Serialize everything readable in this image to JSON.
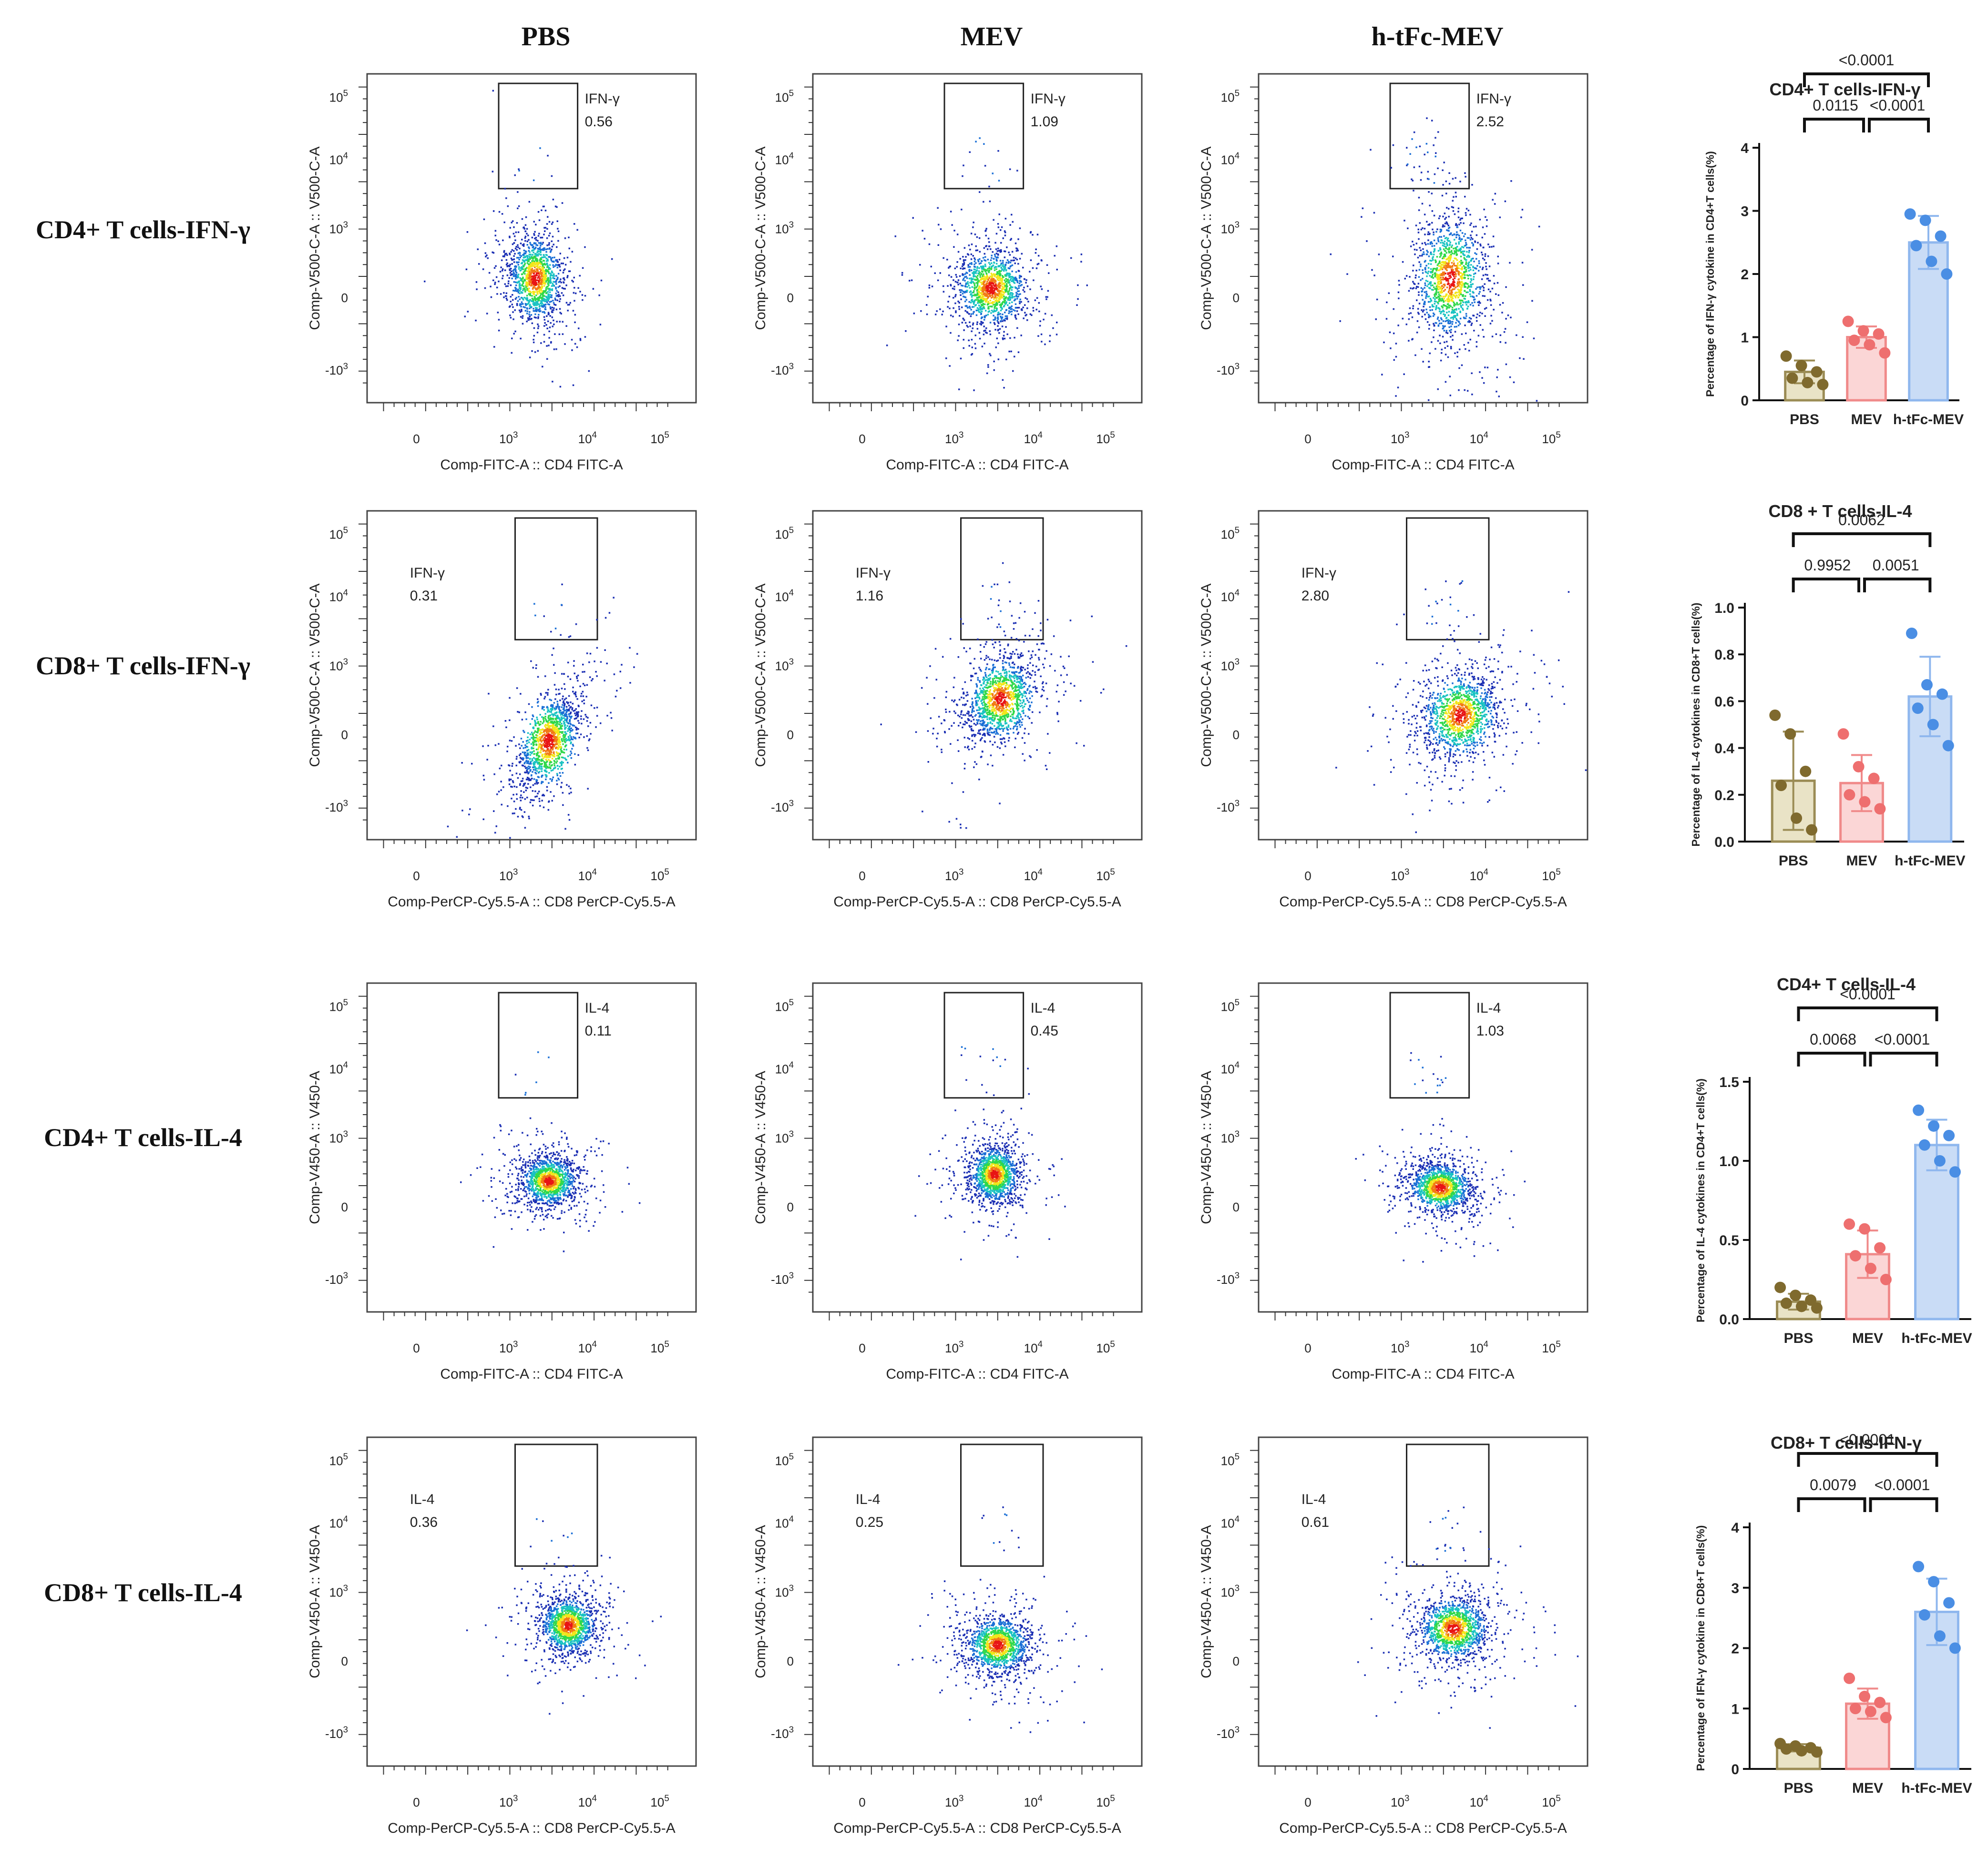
{
  "columns": [
    "PBS",
    "MEV",
    "h-tFc-MEV"
  ],
  "rows": [
    {
      "label": "CD4+ T cells-IFN-γ",
      "y_axis": "Comp-V500-C-A :: V500-C-A",
      "x_axis": "Comp-FITC-A :: CD4 FITC-A",
      "gate_label": "IFN-γ",
      "gate_position": "top-right",
      "gate_values": [
        "0.56",
        "1.09",
        "2.52"
      ]
    },
    {
      "label": "CD8+ T cells-IFN-γ",
      "y_axis": "Comp-V500-C-A :: V500-C-A",
      "x_axis": "Comp-PerCP-Cy5.5-A :: CD8 PerCP-Cy5.5-A",
      "gate_label": "IFN-γ",
      "gate_position": "top-left",
      "gate_values": [
        "0.31",
        "1.16",
        "2.80"
      ]
    },
    {
      "label": "CD4+ T cells-IL-4",
      "y_axis": "Comp-V450-A :: V450-A",
      "x_axis": "Comp-FITC-A :: CD4 FITC-A",
      "gate_label": "IL-4",
      "gate_position": "top-right",
      "gate_values": [
        "0.11",
        "0.45",
        "1.03"
      ]
    },
    {
      "label": "CD8+ T cells-IL-4",
      "y_axis": "Comp-V450-A :: V450-A",
      "x_axis": "Comp-PerCP-Cy5.5-A :: CD8 PerCP-Cy5.5-A",
      "gate_label": "IL-4",
      "gate_position": "top-left",
      "gate_values": [
        "0.36",
        "0.25",
        "0.61"
      ]
    }
  ],
  "flow_axis_ticks": {
    "x": [
      "0",
      "10^3",
      "10^4",
      "10^5"
    ],
    "y": [
      "10^5",
      "10^4",
      "10^3",
      "0",
      "-10^3"
    ]
  },
  "colors": {
    "PBS_fill": "#e9e3c6",
    "PBS_edge": "#9b8c55",
    "PBS_dot": "#7f6a2e",
    "MEV_fill": "#fbd6d6",
    "MEV_edge": "#f08a8a",
    "MEV_dot": "#ee6f6f",
    "hMEV_fill": "#c9dcf6",
    "hMEV_edge": "#8fb7ee",
    "hMEV_dot": "#4a8ee4",
    "density": [
      "#1b2fb3",
      "#1a6fd6",
      "#19c2c2",
      "#2fd84a",
      "#f2e61a",
      "#f27a14",
      "#e81414"
    ]
  },
  "chart_data": [
    {
      "type": "bar",
      "title": "CD4+ T cells-IFN-γ",
      "ylabel": "Percentage of IFN-γ cytokine in CD4+T cells(%)",
      "categories": [
        "PBS",
        "MEV",
        "h-tFc-MEV"
      ],
      "values": [
        0.45,
        1.0,
        2.5
      ],
      "errors": [
        0.18,
        0.17,
        0.42
      ],
      "points": [
        [
          0.7,
          0.55,
          0.45,
          0.35,
          0.28,
          0.25
        ],
        [
          1.25,
          1.1,
          1.05,
          0.95,
          0.88,
          0.75
        ],
        [
          2.95,
          2.85,
          2.6,
          2.45,
          2.2,
          2.0
        ]
      ],
      "ylim": [
        0,
        4
      ],
      "yticks": [
        "0",
        "1",
        "2",
        "3",
        "4"
      ],
      "significance": [
        {
          "from": 0,
          "to": 1,
          "label": "0.0115",
          "level": 0
        },
        {
          "from": 1,
          "to": 2,
          "label": "<0.0001",
          "level": 0
        },
        {
          "from": 0,
          "to": 2,
          "label": "<0.0001",
          "level": 1
        }
      ]
    },
    {
      "type": "bar",
      "title": "CD8 + T cells-IL-4",
      "ylabel": "Percentage of IL-4 cytokines in CD8+T cells(%)",
      "categories": [
        "PBS",
        "MEV",
        "h-tFc-MEV"
      ],
      "values": [
        0.26,
        0.25,
        0.62
      ],
      "errors": [
        0.21,
        0.12,
        0.17
      ],
      "points": [
        [
          0.54,
          0.46,
          0.3,
          0.24,
          0.1,
          0.05
        ],
        [
          0.46,
          0.32,
          0.27,
          0.2,
          0.17,
          0.14
        ],
        [
          0.89,
          0.67,
          0.63,
          0.57,
          0.5,
          0.41
        ]
      ],
      "ylim": [
        0,
        1.0
      ],
      "yticks": [
        "0.0",
        "0.2",
        "0.4",
        "0.6",
        "0.8",
        "1.0"
      ],
      "significance": [
        {
          "from": 0,
          "to": 1,
          "label": "0.9952",
          "level": 0
        },
        {
          "from": 1,
          "to": 2,
          "label": "0.0051",
          "level": 0
        },
        {
          "from": 0,
          "to": 2,
          "label": "0.0062",
          "level": 1
        }
      ]
    },
    {
      "type": "bar",
      "title": "CD4+ T cells-IL-4",
      "ylabel": "Percentage of IL-4 cytokines in CD4+T cells(%)",
      "categories": [
        "PBS",
        "MEV",
        "h-tFc-MEV"
      ],
      "values": [
        0.11,
        0.41,
        1.1
      ],
      "errors": [
        0.05,
        0.15,
        0.16
      ],
      "points": [
        [
          0.2,
          0.15,
          0.12,
          0.1,
          0.08,
          0.07
        ],
        [
          0.6,
          0.57,
          0.45,
          0.4,
          0.32,
          0.25
        ],
        [
          1.32,
          1.22,
          1.16,
          1.1,
          1.0,
          0.93
        ]
      ],
      "ylim": [
        0,
        1.5
      ],
      "yticks": [
        "0.0",
        "0.5",
        "1.0",
        "1.5"
      ],
      "significance": [
        {
          "from": 0,
          "to": 1,
          "label": "0.0068",
          "level": 0
        },
        {
          "from": 1,
          "to": 2,
          "label": "<0.0001",
          "level": 0
        },
        {
          "from": 0,
          "to": 2,
          "label": "<0.0001",
          "level": 1
        }
      ]
    },
    {
      "type": "bar",
      "title": "CD8+ T cells-IFN-γ",
      "ylabel": "Percentage of IFN-γ cytokine in CD8+T cells(%)",
      "categories": [
        "PBS",
        "MEV",
        "h-tFc-MEV"
      ],
      "values": [
        0.35,
        1.08,
        2.6
      ],
      "errors": [
        0.06,
        0.25,
        0.55
      ],
      "points": [
        [
          0.42,
          0.38,
          0.35,
          0.33,
          0.3,
          0.28
        ],
        [
          1.5,
          1.2,
          1.1,
          1.0,
          0.95,
          0.85
        ],
        [
          3.35,
          3.1,
          2.75,
          2.55,
          2.2,
          2.0
        ]
      ],
      "ylim": [
        0,
        4
      ],
      "yticks": [
        "0",
        "1",
        "2",
        "3",
        "4"
      ],
      "significance": [
        {
          "from": 0,
          "to": 1,
          "label": "0.0079",
          "level": 0
        },
        {
          "from": 1,
          "to": 2,
          "label": "<0.0001",
          "level": 0
        },
        {
          "from": 0,
          "to": 2,
          "label": "<0.0001",
          "level": 1
        }
      ]
    }
  ]
}
